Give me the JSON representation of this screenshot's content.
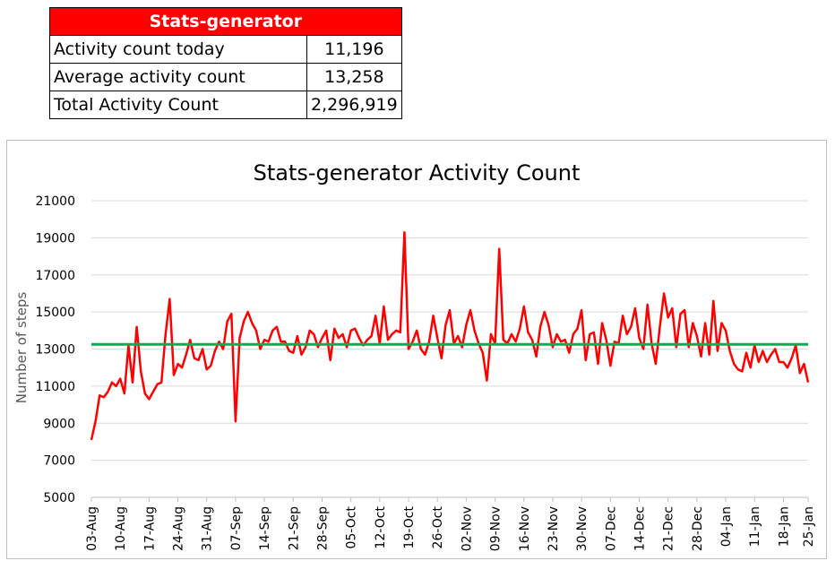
{
  "summary_table": {
    "title": "Stats-generator",
    "rows": [
      {
        "label": "Activity count today",
        "value": "11,196"
      },
      {
        "label": "Average activity count",
        "value": "13,258"
      },
      {
        "label": "Total Activity Count",
        "value": "2,296,919"
      }
    ]
  },
  "chart_data": {
    "type": "line",
    "title": "Stats-generator Activity Count",
    "ylabel": "Number of steps",
    "xlabel": "",
    "ylim": [
      5000,
      21000
    ],
    "yticks": [
      5000,
      7000,
      9000,
      11000,
      13000,
      15000,
      17000,
      19000,
      21000
    ],
    "x_tick_labels": [
      "03-Aug",
      "10-Aug",
      "17-Aug",
      "24-Aug",
      "31-Aug",
      "07-Sep",
      "14-Sep",
      "21-Sep",
      "28-Sep",
      "05-Oct",
      "12-Oct",
      "19-Oct",
      "26-Oct",
      "02-Nov",
      "09-Nov",
      "16-Nov",
      "23-Nov",
      "30-Nov",
      "07-Dec",
      "14-Dec",
      "21-Dec",
      "28-Dec",
      "04-Jan",
      "11-Jan",
      "18-Jan",
      "25-Jan"
    ],
    "grid": "horizontal",
    "series": [
      {
        "color": "#ff0000",
        "values": [
          8100,
          9100,
          10500,
          10400,
          10700,
          11200,
          11000,
          11400,
          10600,
          13200,
          11200,
          14200,
          11800,
          10600,
          10300,
          10700,
          11100,
          11200,
          13800,
          15700,
          11600,
          12200,
          12000,
          12700,
          13500,
          12500,
          12400,
          13000,
          11900,
          12100,
          12900,
          13400,
          13000,
          14500,
          14900,
          9100,
          13600,
          14500,
          15000,
          14400,
          14000,
          13000,
          13500,
          13400,
          14000,
          14200,
          13400,
          13400,
          12900,
          12800,
          13700,
          12700,
          13100,
          14000,
          13800,
          13100,
          13600,
          14000,
          12400,
          14100,
          13600,
          13800,
          13100,
          14000,
          14100,
          13600,
          13200,
          13500,
          13700,
          14800,
          13300,
          15300,
          13500,
          13800,
          14000,
          13900,
          19300,
          13000,
          13400,
          14000,
          13000,
          12700,
          13400,
          14800,
          13600,
          12500,
          14300,
          15100,
          13300,
          13700,
          13100,
          14300,
          15100,
          14000,
          13300,
          12800,
          11300,
          13800,
          13300,
          18400,
          13500,
          13300,
          13800,
          13400,
          14100,
          15300,
          13900,
          13500,
          12600,
          14200,
          15000,
          14300,
          13100,
          13800,
          13400,
          13500,
          12800,
          13800,
          14100,
          15100,
          12400,
          13800,
          13900,
          12200,
          14400,
          13500,
          12100,
          13400,
          13300,
          14800,
          13800,
          14200,
          15200,
          13600,
          13000,
          15400,
          13300,
          12200,
          14200,
          16000,
          14700,
          15200,
          13100,
          14900,
          15100,
          13100,
          14400,
          13700,
          12600,
          14400,
          12700,
          15600,
          12900,
          14400,
          14000,
          12900,
          12200,
          11900,
          11800,
          12800,
          12000,
          13200,
          12300,
          12900,
          12300,
          12700,
          13000,
          12300,
          12300,
          12000,
          12500,
          13200,
          11700,
          12200,
          11200
        ]
      },
      {
        "color": "#00b050",
        "values": [
          13258,
          13258
        ]
      }
    ]
  }
}
